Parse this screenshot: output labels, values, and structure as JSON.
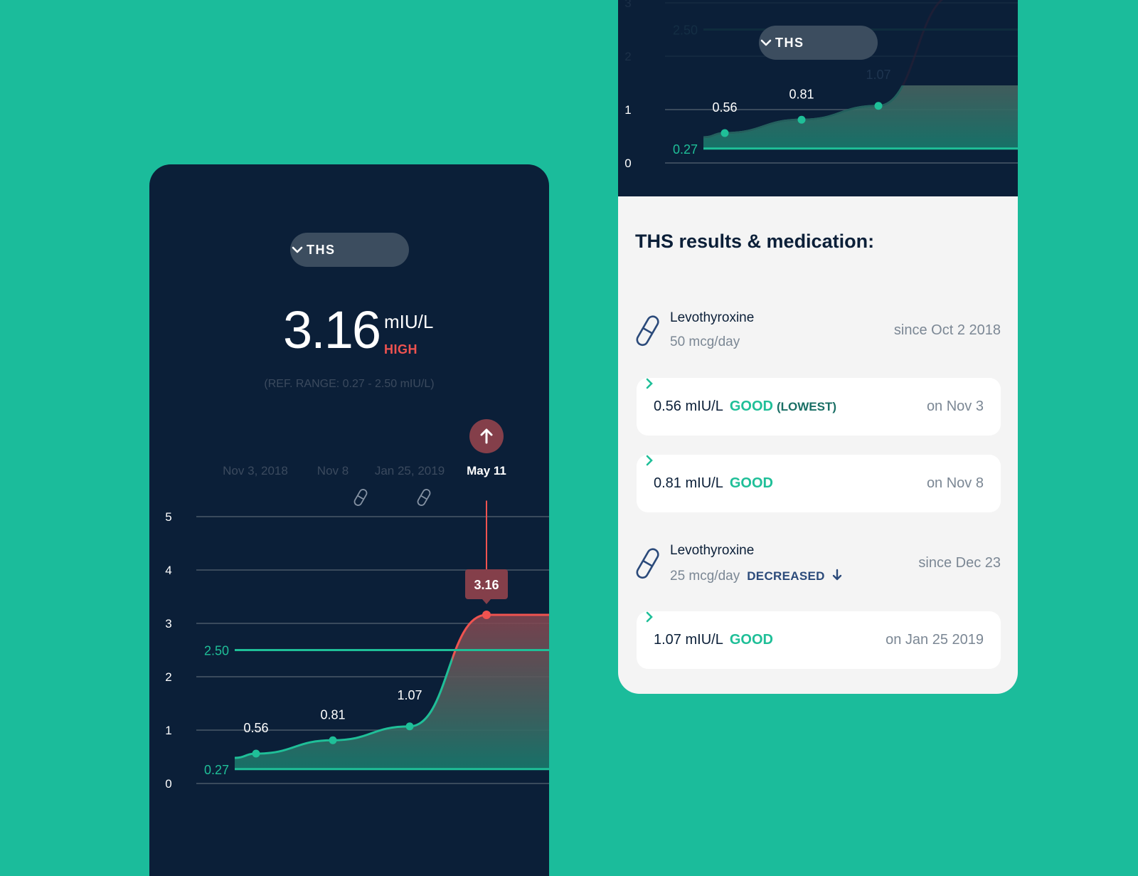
{
  "colors": {
    "background": "#1bbc9b",
    "panel": "#0b1f38",
    "good": "#1fbf98",
    "high": "#ef5350",
    "tooltip": "#843f4a"
  },
  "left": {
    "selector": {
      "label": "THS",
      "icon": "chevron-down-icon"
    },
    "current": {
      "value": "3.16",
      "unit": "mIU/L",
      "status": "HIGH",
      "ref_range": "(REF. RANGE: 0.27 - 2.50 mIU/L)"
    },
    "dates": [
      "Nov 3, 2018",
      "Nov 8",
      "Jan 25, 2019",
      "May 11"
    ],
    "tooltip": "3.16"
  },
  "right": {
    "selector": {
      "label": "THS",
      "icon": "chevron-down-icon"
    },
    "title": "THS results & medication:",
    "items": [
      {
        "type": "med",
        "name": "Levothyroxine",
        "dose": "50 mcg/day",
        "since": "since Oct 2 2018"
      },
      {
        "type": "result",
        "value": "0.56 mIU/L",
        "status": "GOOD",
        "note": "(LOWEST)",
        "date": "on Nov 3"
      },
      {
        "type": "result",
        "value": "0.81 mIU/L",
        "status": "GOOD",
        "date": "on Nov 8"
      },
      {
        "type": "med",
        "name": "Levothyroxine",
        "dose": "25 mcg/day",
        "change": "DECREASED",
        "since": "since Dec 23"
      },
      {
        "type": "result",
        "value": "1.07 mIU/L",
        "status": "GOOD",
        "date": "on Jan 25 2019"
      }
    ]
  },
  "chart_data": {
    "type": "area",
    "x": [
      "Nov 3, 2018",
      "Nov 8",
      "Jan 25, 2019",
      "May 11"
    ],
    "values": [
      0.56,
      0.81,
      1.07,
      3.16
    ],
    "point_labels": [
      "0.56",
      "0.81",
      "1.07",
      "3.16"
    ],
    "yticks": [
      "0",
      "1",
      "2",
      "3",
      "4",
      "5"
    ],
    "ylim": [
      0,
      5
    ],
    "reference_lines": [
      {
        "value": 0.27,
        "label": "0.27"
      },
      {
        "value": 2.5,
        "label": "2.50"
      }
    ],
    "medication_markers": [
      "Nov 8",
      "Jan 25, 2019"
    ],
    "grid": true
  }
}
